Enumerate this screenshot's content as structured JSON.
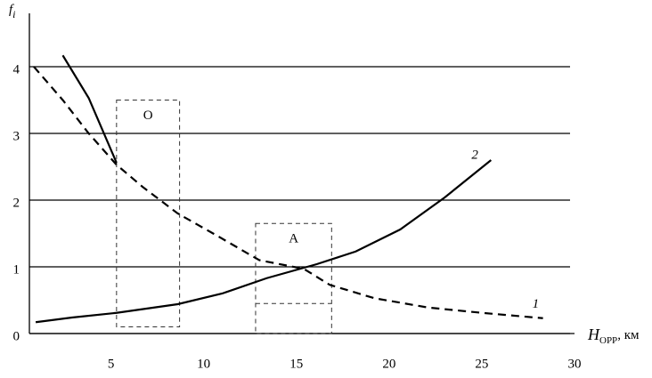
{
  "chart_data": {
    "type": "line",
    "y_label": "f",
    "y_label_sub": "i",
    "x_label": "H",
    "x_label_sub": "ОРР",
    "x_label_unit": ", км",
    "xlim": [
      0.6,
      30
    ],
    "ylim": [
      0,
      4.8
    ],
    "xticks": [
      5,
      10,
      15,
      20,
      25,
      30
    ],
    "yticks": [
      0,
      1,
      2,
      3,
      4
    ],
    "grid": true,
    "series": [
      {
        "name": "1",
        "color": "#000000",
        "dashed": true,
        "x": [
          0.84,
          2.4,
          3.8,
          5.3,
          6.7,
          8.6,
          10.7,
          13.0,
          15.4,
          16.8,
          19.2,
          22.1,
          25.0,
          28.3
        ],
        "values": [
          4.0,
          3.5,
          3.0,
          2.53,
          2.2,
          1.8,
          1.47,
          1.1,
          0.97,
          0.73,
          0.53,
          0.39,
          0.31,
          0.23
        ]
      },
      {
        "name": "2",
        "color": "#000000",
        "dashed": false,
        "x": [
          0.94,
          2.9,
          5.3,
          8.6,
          11.0,
          13.4,
          16.1,
          18.2,
          20.6,
          23.0,
          25.5
        ],
        "values": [
          0.17,
          0.24,
          0.31,
          0.44,
          0.6,
          0.83,
          1.04,
          1.23,
          1.56,
          2.04,
          2.6
        ]
      },
      {
        "color": "#000000",
        "dashed": false,
        "x": [
          2.4,
          3.8,
          5.3
        ],
        "values": [
          4.17,
          3.53,
          2.56
        ]
      }
    ],
    "boxes": [
      {
        "label": "O",
        "x": [
          5.3,
          8.7
        ],
        "y": [
          0.1,
          3.5
        ]
      },
      {
        "label": "A",
        "x": [
          12.8,
          16.9
        ],
        "y": [
          0,
          1.65
        ],
        "inner_y": 0.45
      }
    ]
  }
}
